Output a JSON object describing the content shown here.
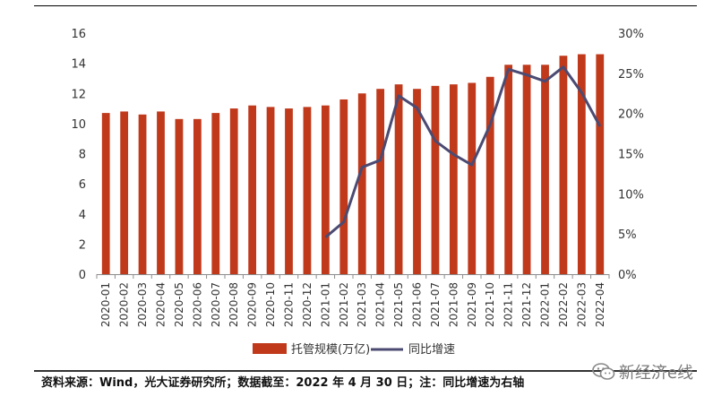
{
  "chart_data": {
    "type": "bar+line",
    "categories": [
      "2020-01",
      "2020-02",
      "2020-03",
      "2020-04",
      "2020-05",
      "2020-06",
      "2020-07",
      "2020-08",
      "2020-09",
      "2020-10",
      "2020-11",
      "2020-12",
      "2021-01",
      "2021-02",
      "2021-03",
      "2021-04",
      "2021-05",
      "2021-06",
      "2021-07",
      "2021-08",
      "2021-09",
      "2021-10",
      "2021-11",
      "2021-12",
      "2022-01",
      "2022-02",
      "2022-03",
      "2022-04"
    ],
    "series": [
      {
        "name": "托管规模(万亿)",
        "type": "bar",
        "axis": "left",
        "color": "#C0391B",
        "values": [
          10.7,
          10.8,
          10.6,
          10.8,
          10.3,
          10.3,
          10.7,
          11.0,
          11.2,
          11.1,
          11.0,
          11.1,
          11.2,
          11.6,
          12.0,
          12.3,
          12.6,
          12.3,
          12.5,
          12.6,
          12.7,
          13.1,
          13.9,
          13.9,
          13.9,
          14.5,
          14.6,
          14.6
        ]
      },
      {
        "name": "同比增速",
        "type": "line",
        "axis": "right",
        "color": "#4B4A72",
        "values": [
          null,
          null,
          null,
          null,
          null,
          null,
          null,
          null,
          null,
          null,
          null,
          null,
          4.6,
          6.5,
          13.3,
          14.2,
          22.2,
          20.7,
          16.6,
          14.9,
          13.6,
          18.6,
          25.5,
          24.8,
          24.0,
          25.8,
          22.6,
          18.4
        ]
      }
    ],
    "y_left": {
      "ylim": [
        0,
        16
      ],
      "ticks": [
        "0",
        "2",
        "4",
        "6",
        "8",
        "10",
        "12",
        "14",
        "16"
      ]
    },
    "y_right": {
      "ylim": [
        0,
        30
      ],
      "ticks": [
        "0%",
        "5%",
        "10%",
        "15%",
        "20%",
        "25%",
        "30%"
      ]
    },
    "legend_position": "bottom-center",
    "grid": false
  },
  "footer": {
    "source_text": "资料来源：Wind，光大证券研究所；数据截至：2022 年 4 月 30 日；注：同比增速为右轴",
    "watermark_text": "新经济e线"
  }
}
